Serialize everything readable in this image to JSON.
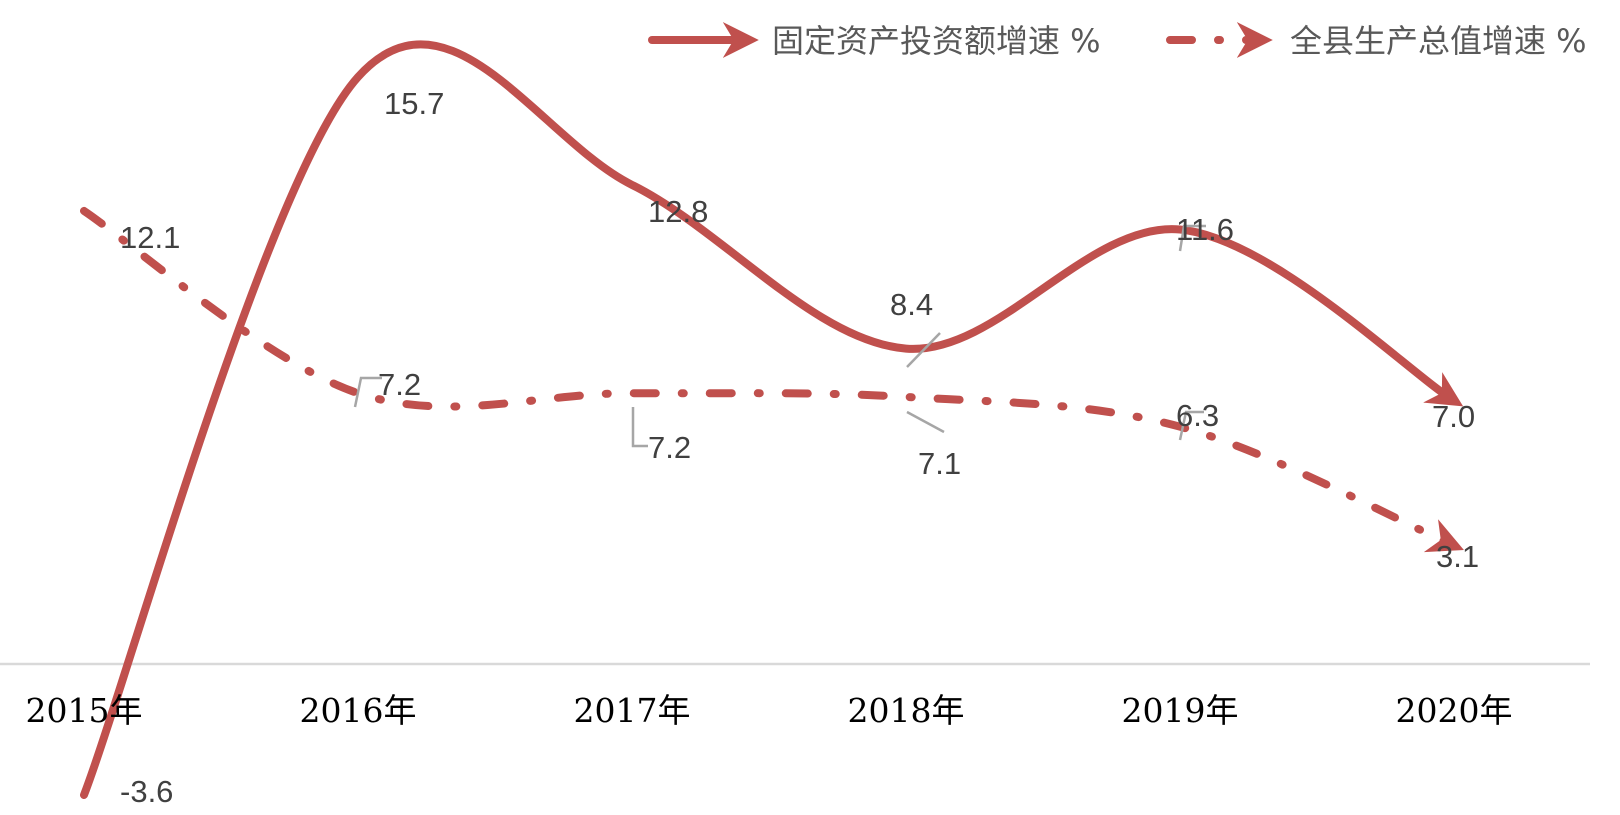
{
  "chart_data": {
    "type": "line",
    "categories": [
      "2015年",
      "2016年",
      "2017年",
      "2018年",
      "2019年",
      "2020年"
    ],
    "series": [
      {
        "name": "固定资产投资额增速 %",
        "values": [
          -3.6,
          15.7,
          12.8,
          8.4,
          11.6,
          7.0
        ],
        "labels": [
          "-3.6",
          "15.7",
          "12.8",
          "8.4",
          "11.6",
          "7.0"
        ],
        "line_style": "solid",
        "color": "#C0504D"
      },
      {
        "name": "全县生产总值增速 %",
        "values": [
          12.1,
          7.2,
          7.2,
          7.1,
          6.3,
          3.1
        ],
        "labels": [
          "12.1",
          "7.2",
          "7.2",
          "7.1",
          "6.3",
          "3.1"
        ],
        "line_style": "dash-dot",
        "color": "#C0504D"
      }
    ],
    "ylim": [
      -3.6,
      15.7
    ],
    "smooth": true,
    "end_markers": "arrow",
    "grid": false,
    "legend_position": "top-right",
    "axis_color": "#D9D9D9",
    "leader_line_color": "#A6A6A6"
  }
}
